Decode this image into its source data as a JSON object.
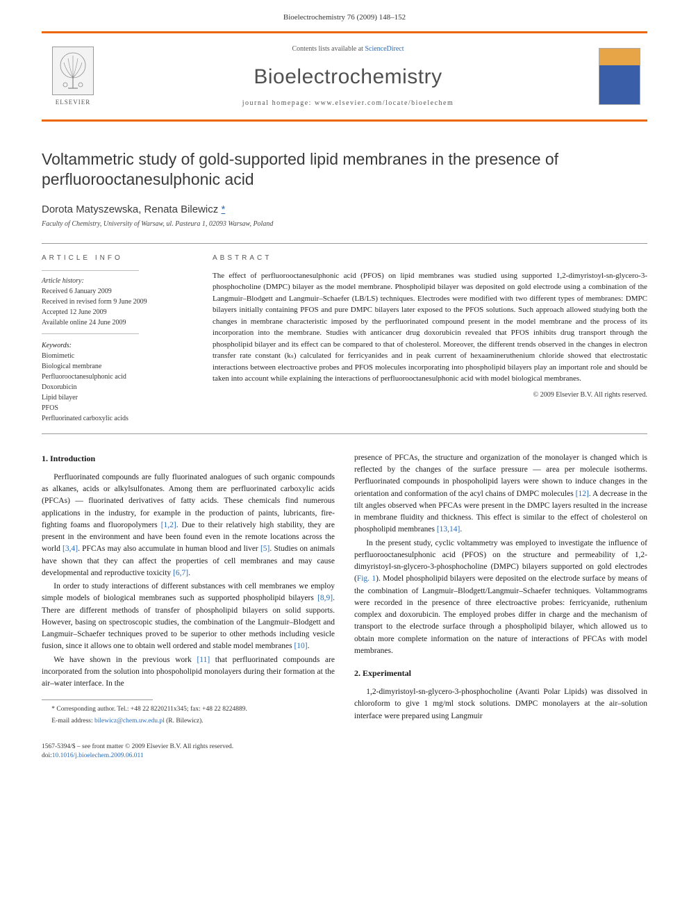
{
  "header": {
    "citation": "Bioelectrochemistry 76 (2009) 148–152"
  },
  "masthead": {
    "contents_prefix": "Contents lists available at ",
    "contents_link": "ScienceDirect",
    "journal": "Bioelectrochemistry",
    "homepage_prefix": "journal homepage: ",
    "homepage": "www.elsevier.com/locate/bioelechem",
    "publisher": "ELSEVIER"
  },
  "article": {
    "title": "Voltammetric study of gold-supported lipid membranes in the presence of perfluorooctanesulphonic acid",
    "authors": "Dorota Matyszewska, Renata Bilewicz ",
    "corr_marker": "*",
    "affiliation": "Faculty of Chemistry, University of Warsaw, ul. Pasteura 1, 02093 Warsaw, Poland"
  },
  "info": {
    "heading": "ARTICLE INFO",
    "history_label": "Article history:",
    "history": [
      "Received 6 January 2009",
      "Received in revised form 9 June 2009",
      "Accepted 12 June 2009",
      "Available online 24 June 2009"
    ],
    "keywords_label": "Keywords:",
    "keywords": [
      "Biomimetic",
      "Biological membrane",
      "Perfluorooctanesulphonic acid",
      "Doxorubicin",
      "Lipid bilayer",
      "PFOS",
      "Perfluorinated carboxylic acids"
    ]
  },
  "abstract": {
    "heading": "ABSTRACT",
    "text": "The effect of perfluorooctanesulphonic acid (PFOS) on lipid membranes was studied using supported 1,2-dimyristoyl-sn-glycero-3-phosphocholine (DMPC) bilayer as the model membrane. Phospholipid bilayer was deposited on gold electrode using a combination of the Langmuir–Blodgett and Langmuir–Schaefer (LB/LS) techniques. Electrodes were modified with two different types of membranes: DMPC bilayers initially containing PFOS and pure DMPC bilayers later exposed to the PFOS solutions. Such approach allowed studying both the changes in membrane characteristic imposed by the perfluorinated compound present in the model membrane and the process of its incorporation into the membrane. Studies with anticancer drug doxorubicin revealed that PFOS inhibits drug transport through the phospholipid bilayer and its effect can be compared to that of cholesterol. Moreover, the different trends observed in the changes in electron transfer rate constant (kₛ) calculated for ferricyanides and in peak current of hexaamineruthenium chloride showed that electrostatic interactions between electroactive probes and PFOS molecules incorporating into phospholipid bilayers play an important role and should be taken into account while explaining the interactions of perfluorooctanesulphonic acid with model biological membranes.",
    "copyright": "© 2009 Elsevier B.V. All rights reserved."
  },
  "sections": {
    "s1_heading": "1. Introduction",
    "s1_p1": "Perfluorinated compounds are fully fluorinated analogues of such organic compounds as alkanes, acids or alkylsulfonates. Among them are perfluorinated carboxylic acids (PFCAs) — fluorinated derivatives of fatty acids. These chemicals find numerous applications in the industry, for example in the production of paints, lubricants, fire-fighting foams and fluoropolymers [1,2]. Due to their relatively high stability, they are present in the environment and have been found even in the remote locations across the world [3,4]. PFCAs may also accumulate in human blood and liver [5]. Studies on animals have shown that they can affect the properties of cell membranes and may cause developmental and reproductive toxicity [6,7].",
    "s1_p2": "In order to study interactions of different substances with cell membranes we employ simple models of biological membranes such as supported phospholipid bilayers [8,9]. There are different methods of transfer of phospholipid bilayers on solid supports. However, basing on spectroscopic studies, the combination of the Langmuir–Blodgett and Langmuir–Schaefer techniques proved to be superior to other methods including vesicle fusion, since it allows one to obtain well ordered and stable model membranes [10].",
    "s1_p3": "We have shown in the previous work [11] that perfluorinated compounds are incorporated from the solution into phospoholipid monolayers during their formation at the air–water interface. In the",
    "s1_p3b": "presence of PFCAs, the structure and organization of the monolayer is changed which is reflected by the changes of the surface pressure — area per molecule isotherms. Perfluorinated compounds in phospoholipid layers were shown to induce changes in the orientation and conformation of the acyl chains of DMPC molecules [12]. A decrease in the tilt angles observed when PFCAs were present in the DMPC layers resulted in the increase in membrane fluidity and thickness. This effect is similar to the effect of cholesterol on phospholipid membranes [13,14].",
    "s1_p4": "In the present study, cyclic voltammetry was employed to investigate the influence of perfluorooctanesulphonic acid (PFOS) on the structure and permeability of 1,2-dimyristoyl-sn-glycero-3-phosphocholine (DMPC) bilayers supported on gold electrodes (Fig. 1). Model phospholipid bilayers were deposited on the electrode surface by means of the combination of Langmuir–Blodgett/Langmuir–Schaefer techniques. Voltammograms were recorded in the presence of three electroactive probes: ferricyanide, ruthenium complex and doxorubicin. The employed probes differ in charge and the mechanism of transport to the electrode surface through a phospholipid bilayer, which allowed us to obtain more complete information on the nature of interactions of PFCAs with model membranes.",
    "s2_heading": "2. Experimental",
    "s2_p1": "1,2-dimyristoyl-sn-glycero-3-phosphocholine (Avanti Polar Lipids) was dissolved in chloroform to give 1 mg/ml stock solutions. DMPC monolayers at the air–solution interface were prepared using Langmuir"
  },
  "footnote": {
    "corr_label": "* Corresponding author. Tel.: +48 22 8220211x345; fax: +48 22 8224889.",
    "email_label": "E-mail address: ",
    "email": "bilewicz@chem.uw.edu.pl",
    "email_suffix": " (R. Bilewicz)."
  },
  "footer": {
    "line1": "1567-5394/$ – see front matter © 2009 Elsevier B.V. All rights reserved.",
    "doi_prefix": "doi:",
    "doi": "10.1016/j.bioelechem.2009.06.011"
  },
  "colors": {
    "orange": "#ec6500",
    "link": "#2a6bb8",
    "text": "#1a1a1a"
  }
}
